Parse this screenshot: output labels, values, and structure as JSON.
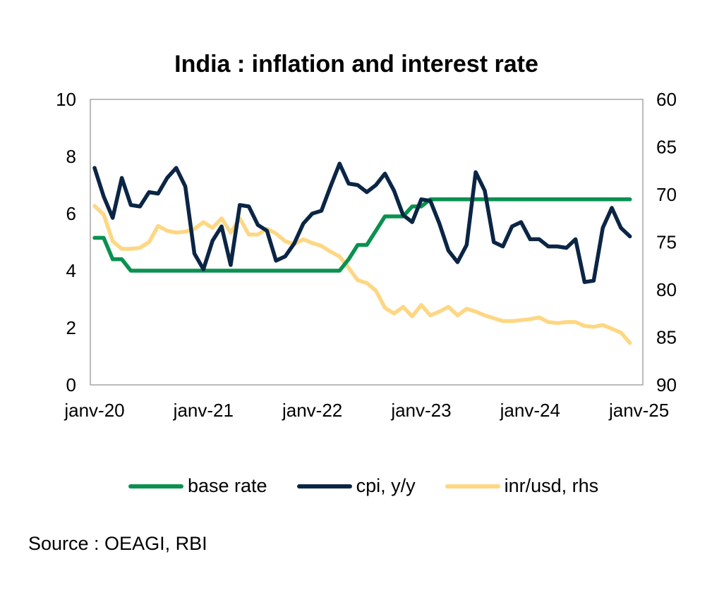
{
  "chart_data": {
    "type": "line",
    "title": "India : inflation and interest rate",
    "xlabel": "",
    "ylabel": "",
    "y2label": "",
    "x_start": "2020-01",
    "x_end": "2024-12",
    "frequency": "monthly",
    "x_tick_labels": [
      "janv-20",
      "janv-21",
      "janv-22",
      "janv-23",
      "janv-24",
      "janv-25"
    ],
    "ylim": [
      0,
      10
    ],
    "y_ticks": [
      "0",
      "2",
      "4",
      "6",
      "8",
      "10"
    ],
    "y2lim": [
      60,
      90
    ],
    "y2_inverted": true,
    "y2_ticks": [
      "60",
      "65",
      "70",
      "75",
      "80",
      "85",
      "90"
    ],
    "grid": false,
    "legend_position": "bottom",
    "series": [
      {
        "name": "base rate",
        "axis": "left",
        "color": "#0a9150",
        "values": [
          5.15,
          5.15,
          4.4,
          4.4,
          4.0,
          4.0,
          4.0,
          4.0,
          4.0,
          4.0,
          4.0,
          4.0,
          4.0,
          4.0,
          4.0,
          4.0,
          4.0,
          4.0,
          4.0,
          4.0,
          4.0,
          4.0,
          4.0,
          4.0,
          4.0,
          4.0,
          4.0,
          4.0,
          4.4,
          4.9,
          4.9,
          5.4,
          5.9,
          5.9,
          5.9,
          6.25,
          6.25,
          6.5,
          6.5,
          6.5,
          6.5,
          6.5,
          6.5,
          6.5,
          6.5,
          6.5,
          6.5,
          6.5,
          6.5,
          6.5,
          6.5,
          6.5,
          6.5,
          6.5,
          6.5,
          6.5,
          6.5,
          6.5,
          6.5,
          6.5
        ]
      },
      {
        "name": "cpi, y/y",
        "axis": "left",
        "color": "#0b2545",
        "values": [
          7.6,
          6.6,
          5.85,
          7.25,
          6.3,
          6.25,
          6.75,
          6.7,
          7.25,
          7.6,
          6.95,
          4.6,
          4.05,
          5.05,
          5.55,
          4.2,
          6.3,
          6.25,
          5.6,
          5.4,
          4.35,
          4.5,
          4.95,
          5.65,
          6.0,
          6.1,
          6.95,
          7.75,
          7.05,
          7.0,
          6.75,
          7.0,
          7.4,
          6.8,
          5.95,
          5.7,
          6.5,
          6.45,
          5.65,
          4.7,
          4.3,
          4.9,
          7.45,
          6.8,
          5.0,
          4.85,
          5.55,
          5.7,
          5.1,
          5.1,
          4.85,
          4.85,
          4.8,
          5.1,
          3.6,
          3.65,
          5.5,
          6.2,
          5.5,
          5.2
        ]
      },
      {
        "name": "inr/usd, rhs",
        "axis": "right",
        "color": "#fdd783",
        "values": [
          71.2,
          72.1,
          74.9,
          75.7,
          75.7,
          75.6,
          75.0,
          73.3,
          73.8,
          74.0,
          73.9,
          73.6,
          72.9,
          73.5,
          72.5,
          74.0,
          72.5,
          74.2,
          74.2,
          73.6,
          74.1,
          74.9,
          75.2,
          74.7,
          75.1,
          75.4,
          76.0,
          76.5,
          77.7,
          79.0,
          79.3,
          80.1,
          81.9,
          82.5,
          81.8,
          82.8,
          81.6,
          82.7,
          82.3,
          81.8,
          82.7,
          82.0,
          82.3,
          82.7,
          83.0,
          83.3,
          83.3,
          83.2,
          83.1,
          82.9,
          83.4,
          83.5,
          83.4,
          83.4,
          83.8,
          83.9,
          83.7,
          84.1,
          84.5,
          85.6
        ]
      }
    ],
    "source": "Source : OEAGI, RBI"
  },
  "header": {
    "title": "India : inflation and interest rate"
  },
  "legend": {
    "items": [
      {
        "label": "base rate",
        "color": "#0a9150"
      },
      {
        "label": "cpi, y/y",
        "color": "#0b2545"
      },
      {
        "label": "inr/usd, rhs",
        "color": "#fdd783"
      }
    ]
  },
  "footer": {
    "source": "Source : OEAGI, RBI"
  }
}
